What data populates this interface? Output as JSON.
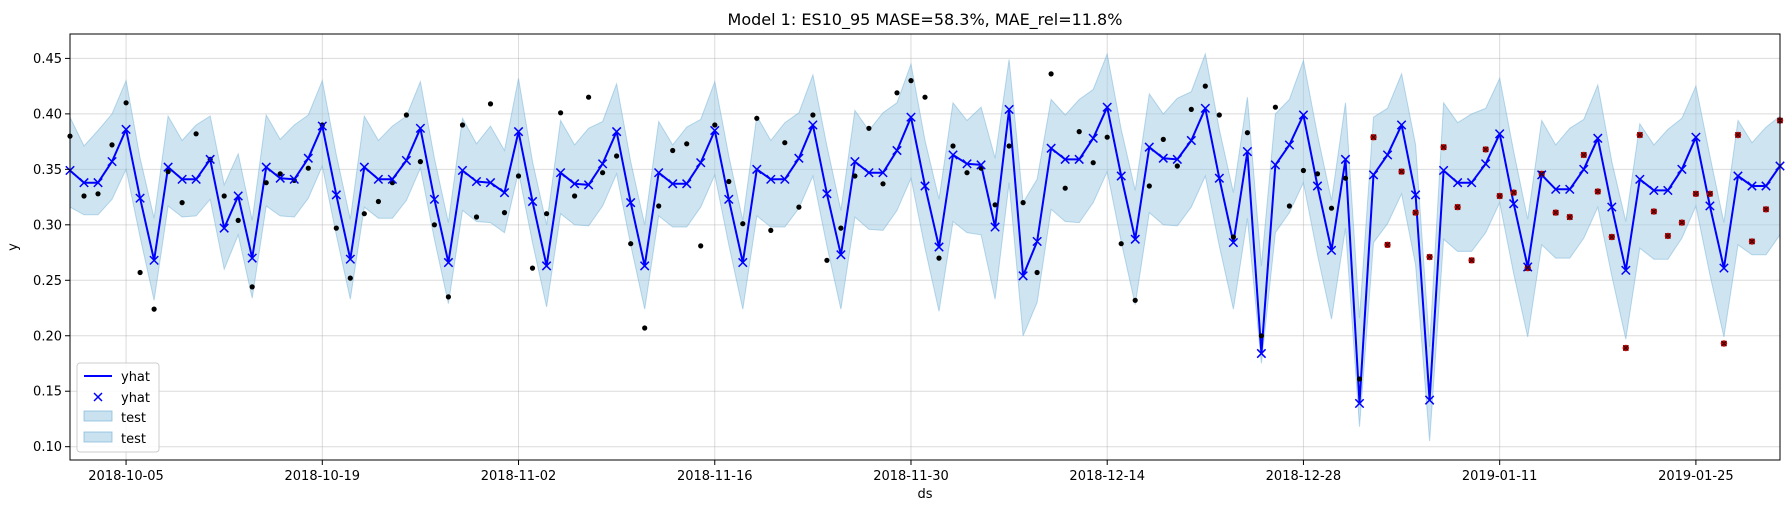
{
  "chart_data": {
    "type": "line",
    "title": "Model 1: ES10_95 MASE=58.3%, MAE_rel=11.8%",
    "xlabel": "ds",
    "ylabel": "y",
    "x_start": "2018-10-01",
    "xlim": [
      0,
      122
    ],
    "ylim": [
      0.088,
      0.472
    ],
    "yticks": [
      0.1,
      0.15,
      0.2,
      0.25,
      0.3,
      0.35,
      0.4,
      0.45
    ],
    "ytick_labels": [
      "0.10",
      "0.15",
      "0.20",
      "0.25",
      "0.30",
      "0.35",
      "0.40",
      "0.45"
    ],
    "xticks": [
      4,
      18,
      32,
      46,
      60,
      74,
      88,
      102,
      116
    ],
    "xtick_labels": [
      "2018-10-05",
      "2018-10-19",
      "2018-11-02",
      "2018-11-16",
      "2018-11-30",
      "2018-12-14",
      "2018-12-28",
      "2019-01-11",
      "2019-01-25"
    ],
    "grid": true,
    "legend_position": "lower-left",
    "legend": [
      "yhat",
      "yhat",
      "test",
      "test"
    ],
    "colors": {
      "line": "#0000ff",
      "band": "#9ecae1",
      "observed": "#000000",
      "test_points": "#cc0000"
    },
    "test_start_index": 93,
    "yhat": [
      0.349,
      0.338,
      0.338,
      0.357,
      0.386,
      0.324,
      0.268,
      0.352,
      0.341,
      0.341,
      0.359,
      0.297,
      0.326,
      0.27,
      0.352,
      0.342,
      0.341,
      0.36,
      0.389,
      0.327,
      0.269,
      0.352,
      0.341,
      0.341,
      0.358,
      0.387,
      0.323,
      0.266,
      0.349,
      0.339,
      0.338,
      0.329,
      0.384,
      0.321,
      0.263,
      0.347,
      0.337,
      0.336,
      0.355,
      0.384,
      0.32,
      0.263,
      0.347,
      0.337,
      0.337,
      0.356,
      0.385,
      0.323,
      0.266,
      0.35,
      0.341,
      0.341,
      0.36,
      0.39,
      0.328,
      0.273,
      0.357,
      0.347,
      0.347,
      0.367,
      0.397,
      0.335,
      0.28,
      0.363,
      0.355,
      0.354,
      0.298,
      0.404,
      0.254,
      0.285,
      0.369,
      0.359,
      0.359,
      0.378,
      0.406,
      0.344,
      0.287,
      0.37,
      0.36,
      0.359,
      0.376,
      0.405,
      0.342,
      0.284,
      0.366,
      0.184,
      0.354,
      0.372,
      0.399,
      0.335,
      0.277,
      0.359,
      0.139,
      0.345,
      0.363,
      0.39,
      0.327,
      0.142,
      0.349,
      0.338,
      0.338,
      0.355,
      0.382,
      0.319,
      0.262,
      0.345,
      0.332,
      0.332,
      0.35,
      0.378,
      0.316,
      0.259,
      0.341,
      0.331,
      0.331,
      0.35,
      0.379,
      0.317,
      0.261,
      0.344,
      0.335,
      0.335,
      0.353
    ],
    "band_lower": [
      0.316,
      0.309,
      0.309,
      0.323,
      0.35,
      0.289,
      0.232,
      0.317,
      0.307,
      0.308,
      0.323,
      0.26,
      0.291,
      0.234,
      0.317,
      0.308,
      0.307,
      0.324,
      0.353,
      0.291,
      0.233,
      0.316,
      0.306,
      0.306,
      0.322,
      0.351,
      0.287,
      0.229,
      0.313,
      0.303,
      0.302,
      0.293,
      0.348,
      0.284,
      0.226,
      0.31,
      0.3,
      0.299,
      0.317,
      0.346,
      0.282,
      0.224,
      0.308,
      0.298,
      0.298,
      0.316,
      0.345,
      0.282,
      0.224,
      0.308,
      0.298,
      0.298,
      0.315,
      0.344,
      0.281,
      0.224,
      0.307,
      0.296,
      0.295,
      0.313,
      0.342,
      0.279,
      0.222,
      0.303,
      0.293,
      0.291,
      0.233,
      0.338,
      0.2,
      0.23,
      0.314,
      0.303,
      0.302,
      0.32,
      0.348,
      0.285,
      0.228,
      0.311,
      0.3,
      0.299,
      0.316,
      0.344,
      0.281,
      0.224,
      0.306,
      0.175,
      0.293,
      0.311,
      0.338,
      0.273,
      0.215,
      0.297,
      0.118,
      0.284,
      0.301,
      0.328,
      0.264,
      0.105,
      0.287,
      0.276,
      0.276,
      0.293,
      0.32,
      0.256,
      0.199,
      0.282,
      0.27,
      0.27,
      0.288,
      0.316,
      0.254,
      0.197,
      0.279,
      0.269,
      0.269,
      0.288,
      0.317,
      0.255,
      0.199,
      0.282,
      0.273,
      0.273,
      0.291
    ],
    "band_upper": [
      0.397,
      0.371,
      0.385,
      0.4,
      0.43,
      0.36,
      0.306,
      0.398,
      0.376,
      0.39,
      0.398,
      0.336,
      0.364,
      0.304,
      0.399,
      0.377,
      0.39,
      0.399,
      0.43,
      0.363,
      0.305,
      0.398,
      0.376,
      0.389,
      0.398,
      0.429,
      0.36,
      0.302,
      0.396,
      0.373,
      0.389,
      0.367,
      0.432,
      0.357,
      0.3,
      0.394,
      0.372,
      0.387,
      0.393,
      0.427,
      0.357,
      0.3,
      0.393,
      0.372,
      0.388,
      0.395,
      0.429,
      0.362,
      0.304,
      0.398,
      0.376,
      0.392,
      0.401,
      0.435,
      0.371,
      0.313,
      0.403,
      0.385,
      0.401,
      0.41,
      0.445,
      0.376,
      0.323,
      0.41,
      0.394,
      0.406,
      0.36,
      0.449,
      0.32,
      0.341,
      0.413,
      0.399,
      0.413,
      0.422,
      0.454,
      0.386,
      0.331,
      0.418,
      0.4,
      0.414,
      0.42,
      0.454,
      0.386,
      0.329,
      0.415,
      0.263,
      0.4,
      0.413,
      0.448,
      0.381,
      0.322,
      0.41,
      0.216,
      0.397,
      0.405,
      0.436,
      0.372,
      0.19,
      0.41,
      0.392,
      0.4,
      0.405,
      0.432,
      0.366,
      0.305,
      0.394,
      0.372,
      0.387,
      0.395,
      0.426,
      0.357,
      0.303,
      0.391,
      0.372,
      0.386,
      0.396,
      0.425,
      0.362,
      0.302,
      0.394,
      0.374,
      0.388,
      0.398
    ],
    "observed": [
      0.38,
      0.326,
      0.328,
      0.372,
      0.41,
      0.257,
      0.224,
      0.348,
      0.32,
      0.382,
      0.359,
      0.326,
      0.304,
      0.244,
      0.338,
      0.346,
      0.34,
      0.351,
      0.39,
      0.297,
      0.252,
      0.31,
      0.321,
      0.338,
      0.399,
      0.357,
      0.3,
      0.235,
      0.39,
      0.307,
      0.409,
      0.311,
      0.344,
      0.261,
      0.31,
      0.401,
      0.326,
      0.415,
      0.347,
      0.362,
      0.283,
      0.207,
      0.317,
      0.367,
      0.373,
      0.281,
      0.39,
      0.339,
      0.301,
      0.396,
      0.295,
      0.374,
      0.316,
      0.399,
      0.268,
      0.297,
      0.344,
      0.387,
      0.337,
      0.419,
      0.43,
      0.415,
      0.27,
      0.371,
      0.347,
      0.351,
      0.318,
      0.371,
      0.32,
      0.257,
      0.436,
      0.333,
      0.384,
      0.356,
      0.379,
      0.283,
      0.232,
      0.335,
      0.377,
      0.353,
      0.404,
      0.425,
      0.399,
      0.289,
      0.383,
      0.2,
      0.406,
      0.317,
      0.349,
      0.346,
      0.315,
      0.342,
      0.161,
      0.379,
      0.282,
      0.348,
      0.311,
      0.271,
      0.37,
      0.316,
      0.268,
      0.368,
      0.326,
      0.329,
      0.261,
      0.346,
      0.311,
      0.307,
      0.363,
      0.33,
      0.289,
      0.189,
      0.381,
      0.312,
      0.29,
      0.302,
      0.328,
      0.328,
      0.193,
      0.381,
      0.285,
      0.314,
      0.394
    ]
  }
}
